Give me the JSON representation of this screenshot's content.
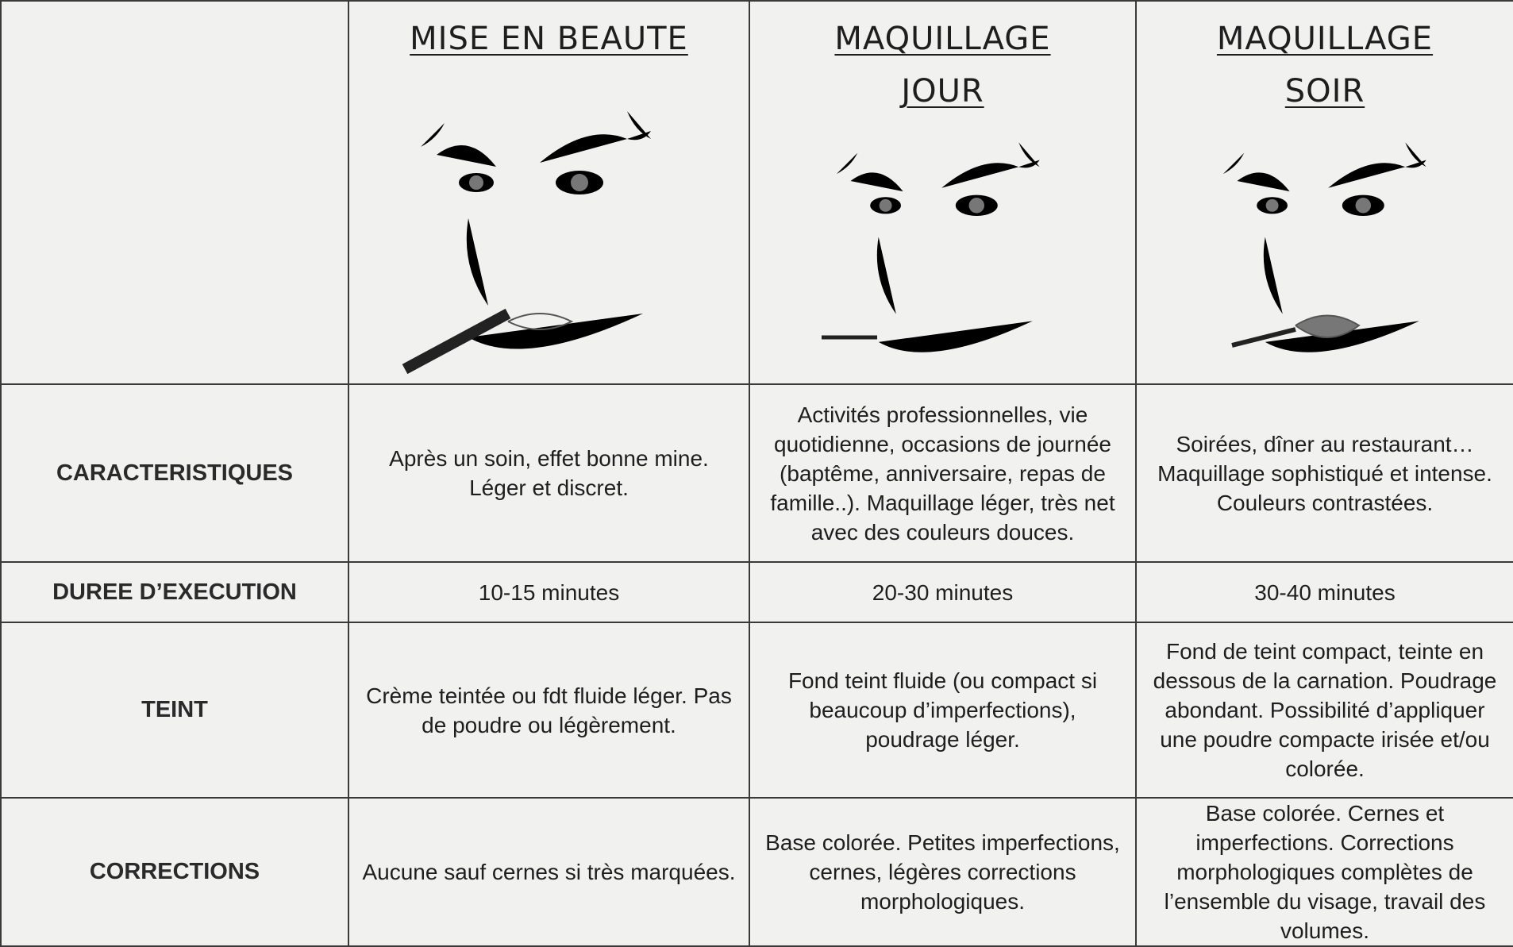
{
  "table": {
    "header": [
      [
        "MISE EN BEAUTE"
      ],
      [
        "MAQUILLAGE",
        "JOUR"
      ],
      [
        "MAQUILLAGE",
        "SOIR"
      ]
    ],
    "rows": [
      {
        "label": "CARACTERISTIQUES",
        "cells": [
          "Après un soin, effet bonne mine. Léger et discret.",
          "Activités professionnelles, vie quotidienne, occasions de journée (baptême, anniversaire, repas de famille..). Maquillage léger, très net avec des couleurs douces.",
          "Soirées, dîner au restaurant… Maquillage sophistiqué et intense. Couleurs contrastées."
        ]
      },
      {
        "label": "DUREE D’EXECUTION",
        "cells": [
          "10-15 minutes",
          "20-30 minutes",
          "30-40 minutes"
        ]
      },
      {
        "label": "TEINT",
        "cells": [
          "Crème teintée ou fdt fluide léger. Pas de poudre ou légèrement.",
          "Fond teint fluide (ou compact si beaucoup d’imperfections), poudrage léger.",
          "Fond de teint compact, teinte en dessous de la carnation. Poudrage abondant. Possibilité d’appliquer une poudre compacte irisée et/ou colorée."
        ]
      },
      {
        "label": "CORRECTIONS",
        "cells": [
          "Aucune sauf cernes si très marquées.",
          "Base colorée. Petites imperfections, cernes, légères corrections morphologiques.",
          "Base colorée. Cernes et imperfections. Corrections morphologiques complètes de l’ensemble du visage, travail des volumes."
        ]
      }
    ]
  }
}
